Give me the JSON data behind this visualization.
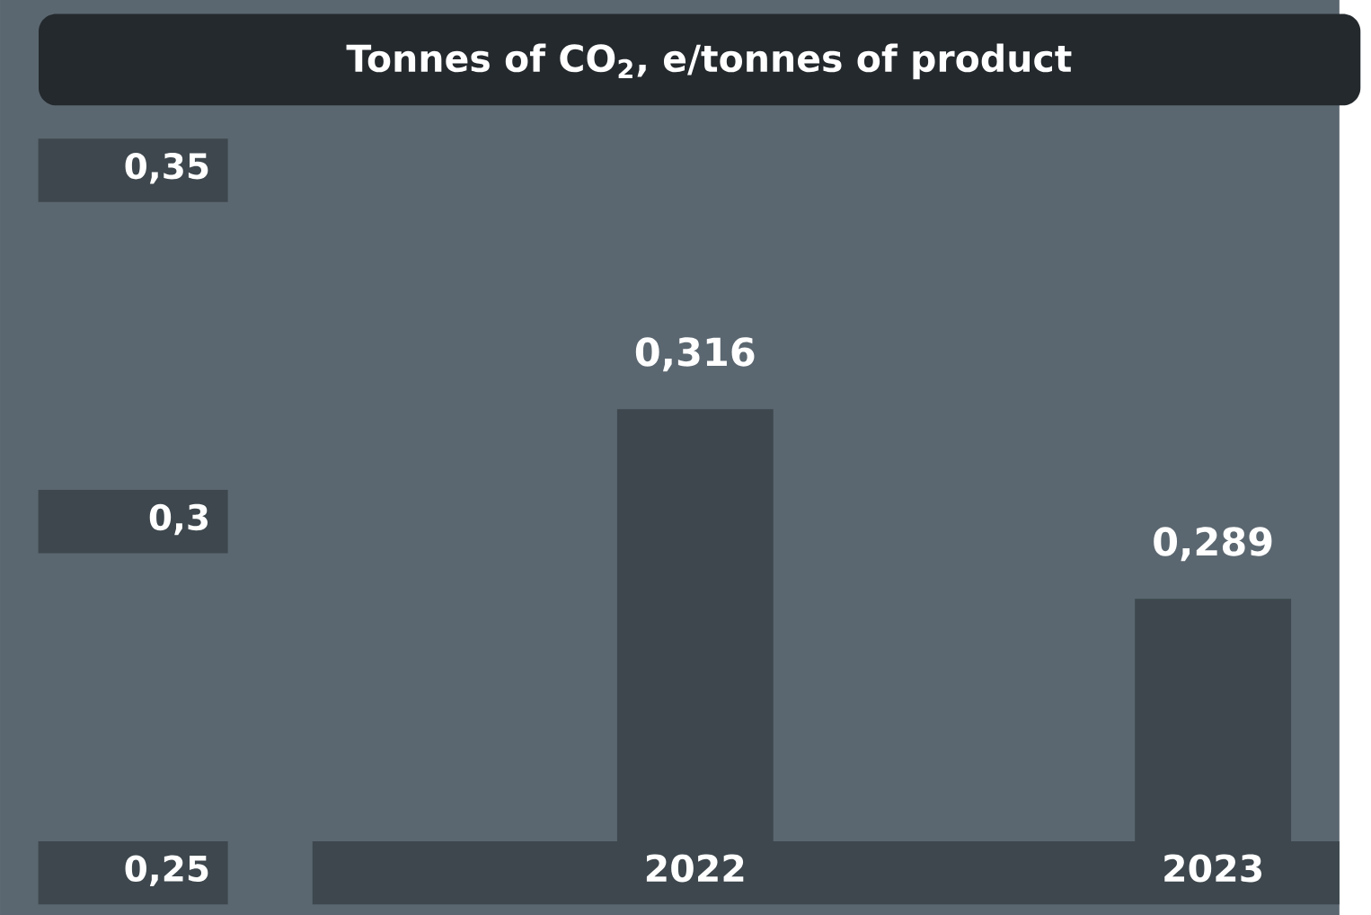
{
  "chart_data": {
    "type": "bar",
    "title": "Tonnes of CO$_{2}$, e/tonnes of product",
    "categories": [
      "2022",
      "2023"
    ],
    "values": [
      0.316,
      0.289
    ],
    "color": "#3d474d",
    "value_labels": [
      "0,316",
      "0,289"
    ],
    "ylim": [
      0.25,
      0.35
    ],
    "yticks": [
      {
        "value": 0.25,
        "label": "0,25"
      },
      {
        "value": 0.3,
        "label": "0,3"
      },
      {
        "value": 0.35,
        "label": "0,35"
      }
    ]
  }
}
